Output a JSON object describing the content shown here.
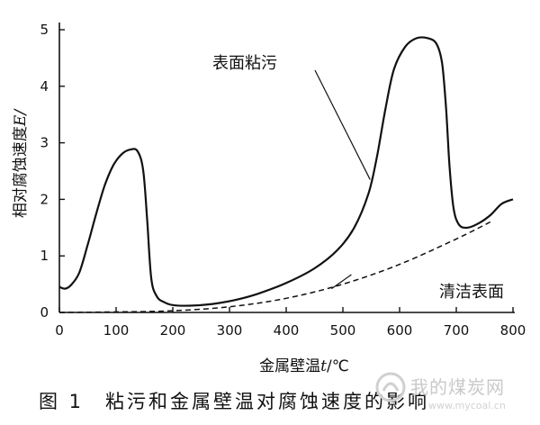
{
  "chart_data": {
    "type": "line",
    "xlabel_text": "金属壁温",
    "xlabel_var": "t",
    "xlabel_unit": "/℃",
    "ylabel_text": "相对腐蚀速度",
    "ylabel_var": "E",
    "ylabel_unit": "/",
    "xlim": [
      0,
      800
    ],
    "ylim": [
      0,
      5
    ],
    "xticks": [
      "0",
      "100",
      "200",
      "300",
      "400",
      "500",
      "600",
      "700",
      "800"
    ],
    "yticks": [
      "0",
      "1",
      "2",
      "3",
      "4",
      "5"
    ],
    "series": [
      {
        "name": "表面粘污",
        "style": "solid",
        "x": [
          0,
          10,
          20,
          35,
          50,
          65,
          80,
          95,
          110,
          125,
          138,
          148,
          155,
          162,
          172,
          185,
          200,
          230,
          270,
          310,
          350,
          400,
          450,
          490,
          520,
          545,
          560,
          575,
          590,
          610,
          630,
          650,
          665,
          675,
          682,
          688,
          695,
          705,
          720,
          740,
          760,
          780,
          800
        ],
        "y": [
          0.45,
          0.42,
          0.48,
          0.7,
          1.2,
          1.75,
          2.25,
          2.6,
          2.8,
          2.88,
          2.85,
          2.5,
          1.6,
          0.6,
          0.28,
          0.18,
          0.13,
          0.12,
          0.15,
          0.22,
          0.33,
          0.52,
          0.78,
          1.1,
          1.5,
          2.1,
          2.75,
          3.6,
          4.3,
          4.7,
          4.85,
          4.85,
          4.75,
          4.4,
          3.6,
          2.6,
          1.85,
          1.55,
          1.5,
          1.58,
          1.72,
          1.92,
          2.0
        ]
      },
      {
        "name": "清洁表面",
        "style": "dashed",
        "x": [
          0,
          100,
          200,
          300,
          400,
          500,
          600,
          700,
          760
        ],
        "y": [
          0.0,
          0.01,
          0.03,
          0.1,
          0.25,
          0.5,
          0.85,
          1.3,
          1.6
        ]
      }
    ],
    "annotations": [
      {
        "text": "表面粘污",
        "series": 0
      },
      {
        "text": "清洁表面",
        "series": 1
      }
    ]
  },
  "caption": "图 1　粘污和金属壁温对腐蚀速度的影响",
  "watermark": {
    "text": "我的煤炭网",
    "url": "www.mycoal.cn",
    "color": "#c9c9c9"
  }
}
